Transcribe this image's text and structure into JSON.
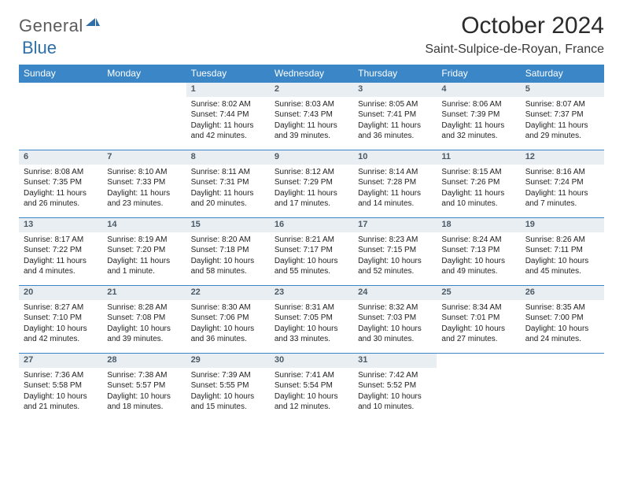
{
  "brand": {
    "name_a": "General",
    "name_b": "Blue"
  },
  "title": "October 2024",
  "location": "Saint-Sulpice-de-Royan, France",
  "colors": {
    "header_bg": "#3b86c6",
    "header_fg": "#ffffff",
    "daynum_bg": "#e9eef2",
    "daynum_fg": "#4b5a66",
    "rule": "#3b86c6",
    "logo_gray": "#5c5c5c",
    "logo_blue": "#2f6fa8"
  },
  "font": {
    "family": "Arial",
    "title_size_pt": 22,
    "body_size_pt": 7.5
  },
  "layout": {
    "cols": 7,
    "rows": 5,
    "aspect": "792x612"
  },
  "weekdays": [
    "Sunday",
    "Monday",
    "Tuesday",
    "Wednesday",
    "Thursday",
    "Friday",
    "Saturday"
  ],
  "weeks": [
    [
      null,
      null,
      {
        "n": "1",
        "sr": "8:02 AM",
        "ss": "7:44 PM",
        "dl": "11 hours and 42 minutes."
      },
      {
        "n": "2",
        "sr": "8:03 AM",
        "ss": "7:43 PM",
        "dl": "11 hours and 39 minutes."
      },
      {
        "n": "3",
        "sr": "8:05 AM",
        "ss": "7:41 PM",
        "dl": "11 hours and 36 minutes."
      },
      {
        "n": "4",
        "sr": "8:06 AM",
        "ss": "7:39 PM",
        "dl": "11 hours and 32 minutes."
      },
      {
        "n": "5",
        "sr": "8:07 AM",
        "ss": "7:37 PM",
        "dl": "11 hours and 29 minutes."
      }
    ],
    [
      {
        "n": "6",
        "sr": "8:08 AM",
        "ss": "7:35 PM",
        "dl": "11 hours and 26 minutes."
      },
      {
        "n": "7",
        "sr": "8:10 AM",
        "ss": "7:33 PM",
        "dl": "11 hours and 23 minutes."
      },
      {
        "n": "8",
        "sr": "8:11 AM",
        "ss": "7:31 PM",
        "dl": "11 hours and 20 minutes."
      },
      {
        "n": "9",
        "sr": "8:12 AM",
        "ss": "7:29 PM",
        "dl": "11 hours and 17 minutes."
      },
      {
        "n": "10",
        "sr": "8:14 AM",
        "ss": "7:28 PM",
        "dl": "11 hours and 14 minutes."
      },
      {
        "n": "11",
        "sr": "8:15 AM",
        "ss": "7:26 PM",
        "dl": "11 hours and 10 minutes."
      },
      {
        "n": "12",
        "sr": "8:16 AM",
        "ss": "7:24 PM",
        "dl": "11 hours and 7 minutes."
      }
    ],
    [
      {
        "n": "13",
        "sr": "8:17 AM",
        "ss": "7:22 PM",
        "dl": "11 hours and 4 minutes."
      },
      {
        "n": "14",
        "sr": "8:19 AM",
        "ss": "7:20 PM",
        "dl": "11 hours and 1 minute."
      },
      {
        "n": "15",
        "sr": "8:20 AM",
        "ss": "7:18 PM",
        "dl": "10 hours and 58 minutes."
      },
      {
        "n": "16",
        "sr": "8:21 AM",
        "ss": "7:17 PM",
        "dl": "10 hours and 55 minutes."
      },
      {
        "n": "17",
        "sr": "8:23 AM",
        "ss": "7:15 PM",
        "dl": "10 hours and 52 minutes."
      },
      {
        "n": "18",
        "sr": "8:24 AM",
        "ss": "7:13 PM",
        "dl": "10 hours and 49 minutes."
      },
      {
        "n": "19",
        "sr": "8:26 AM",
        "ss": "7:11 PM",
        "dl": "10 hours and 45 minutes."
      }
    ],
    [
      {
        "n": "20",
        "sr": "8:27 AM",
        "ss": "7:10 PM",
        "dl": "10 hours and 42 minutes."
      },
      {
        "n": "21",
        "sr": "8:28 AM",
        "ss": "7:08 PM",
        "dl": "10 hours and 39 minutes."
      },
      {
        "n": "22",
        "sr": "8:30 AM",
        "ss": "7:06 PM",
        "dl": "10 hours and 36 minutes."
      },
      {
        "n": "23",
        "sr": "8:31 AM",
        "ss": "7:05 PM",
        "dl": "10 hours and 33 minutes."
      },
      {
        "n": "24",
        "sr": "8:32 AM",
        "ss": "7:03 PM",
        "dl": "10 hours and 30 minutes."
      },
      {
        "n": "25",
        "sr": "8:34 AM",
        "ss": "7:01 PM",
        "dl": "10 hours and 27 minutes."
      },
      {
        "n": "26",
        "sr": "8:35 AM",
        "ss": "7:00 PM",
        "dl": "10 hours and 24 minutes."
      }
    ],
    [
      {
        "n": "27",
        "sr": "7:36 AM",
        "ss": "5:58 PM",
        "dl": "10 hours and 21 minutes."
      },
      {
        "n": "28",
        "sr": "7:38 AM",
        "ss": "5:57 PM",
        "dl": "10 hours and 18 minutes."
      },
      {
        "n": "29",
        "sr": "7:39 AM",
        "ss": "5:55 PM",
        "dl": "10 hours and 15 minutes."
      },
      {
        "n": "30",
        "sr": "7:41 AM",
        "ss": "5:54 PM",
        "dl": "10 hours and 12 minutes."
      },
      {
        "n": "31",
        "sr": "7:42 AM",
        "ss": "5:52 PM",
        "dl": "10 hours and 10 minutes."
      },
      null,
      null
    ]
  ],
  "labels": {
    "sunrise": "Sunrise: ",
    "sunset": "Sunset: ",
    "daylight": "Daylight: "
  }
}
